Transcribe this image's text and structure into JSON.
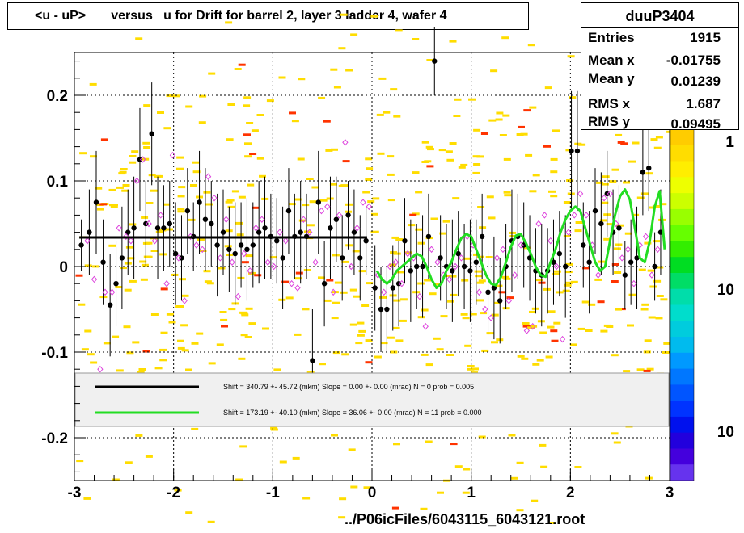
{
  "title": "<u - uP>       versus   u for Drift for barrel 2, layer 3 ladder 4, wafer 4",
  "stats": {
    "name": "duuP3404",
    "rows": [
      {
        "label": "Entries",
        "value": "1915"
      },
      {
        "label": "Mean x",
        "value": "-0.01755"
      },
      {
        "label": "Mean y",
        "value": "0.01239"
      },
      {
        "label": "RMS x",
        "value": "1.687"
      },
      {
        "label": "RMS y",
        "value": "0.09495"
      }
    ]
  },
  "palette_labels": [
    "1",
    "10",
    "10"
  ],
  "footer": "../P06icFiles/6043115_6043121.root",
  "legend": [
    {
      "color": "#000000",
      "text": "Shift =   340.79 +- 45.72 (mkm) Slope =     0.00 +- 0.00 (mrad)  N = 0 prob = 0.005"
    },
    {
      "color": "#22dd22",
      "text": "Shift =   173.19 +- 40.10 (mkm) Slope =    36.06 +- 0.00 (mrad)  N = 11 prob = 0.000"
    }
  ],
  "chart_data": {
    "type": "scatter",
    "title": "<u - uP>       versus   u for Drift for barrel 2, layer 3 ladder 4, wafer 4",
    "xlabel": "",
    "ylabel": "",
    "xlim": [
      -3,
      3
    ],
    "ylim": [
      -0.25,
      0.25
    ],
    "x_ticks": [
      -3,
      -2,
      -1,
      0,
      1,
      2,
      3
    ],
    "x_tick_labels": [
      "-3",
      "-2",
      "-1",
      "0",
      "1",
      "2",
      "3"
    ],
    "y_ticks": [
      -0.2,
      -0.1,
      0,
      0.1,
      0.2
    ],
    "y_tick_labels": [
      "-0.2",
      "-0.1",
      "0",
      "0.1",
      "0.2"
    ],
    "grid": true,
    "series": [
      {
        "marker": "filled-circle",
        "color": "#000000",
        "x": [
          -2.93,
          -2.85,
          -2.78,
          -2.71,
          -2.64,
          -2.58,
          -2.52,
          -2.46,
          -2.4,
          -2.34,
          -2.28,
          -2.22,
          -2.16,
          -2.1,
          -2.04,
          -1.98,
          -1.92,
          -1.86,
          -1.8,
          -1.74,
          -1.68,
          -1.62,
          -1.56,
          -1.5,
          -1.44,
          -1.38,
          -1.32,
          -1.26,
          -1.2,
          -1.14,
          -1.08,
          -1.02,
          -0.96,
          -0.9,
          -0.84,
          -0.78,
          -0.72,
          -0.66,
          -0.6,
          -0.54,
          -0.48,
          -0.42,
          -0.36,
          -0.3,
          -0.24,
          -0.18,
          -0.12,
          -0.06,
          0.03,
          0.09,
          0.15,
          0.21,
          0.27,
          0.33,
          0.39,
          0.45,
          0.51,
          0.57,
          0.63,
          0.69,
          0.75,
          0.81,
          0.87,
          0.93,
          0.99,
          1.05,
          1.11,
          1.17,
          1.23,
          1.29,
          1.35,
          1.41,
          1.47,
          1.53,
          1.59,
          1.65,
          1.71,
          1.77,
          1.83,
          1.89,
          1.95,
          2.01,
          2.07,
          2.13,
          2.19,
          2.25,
          2.31,
          2.37,
          2.43,
          2.49,
          2.55,
          2.61,
          2.67,
          2.73,
          2.79,
          2.85,
          2.91
        ],
        "y": [
          0.025,
          0.04,
          0.075,
          0.005,
          -0.045,
          -0.02,
          0.01,
          0.04,
          0.045,
          0.125,
          0.05,
          0.155,
          0.045,
          0.045,
          0.05,
          0.015,
          0.01,
          0.065,
          0.035,
          0.075,
          0.055,
          0.05,
          0.025,
          0.04,
          0.02,
          0.015,
          0.025,
          0.02,
          0.025,
          0.04,
          0.045,
          0.035,
          0.03,
          0.01,
          0.065,
          0.035,
          0.04,
          0.035,
          -0.11,
          0.075,
          -0.02,
          0.045,
          0.055,
          0.01,
          0.06,
          0.04,
          0.01,
          0.03,
          -0.025,
          -0.05,
          -0.05,
          -0.025,
          -0.02,
          0.03,
          -0.005,
          0.0,
          0.0,
          0.035,
          0.24,
          0.01,
          0.0,
          -0.005,
          0.015,
          0.0,
          -0.005,
          0.005,
          0.035,
          -0.03,
          -0.025,
          -0.04,
          0.0,
          0.03,
          0.035,
          0.025,
          0.01,
          -0.005,
          -0.01,
          -0.005,
          0.005,
          0.015,
          0.0,
          0.135,
          0.135,
          0.025,
          0.005,
          0.065,
          0.05,
          0.085,
          0.04,
          0.045,
          -0.01,
          0.005,
          0.01,
          0.11,
          0.115,
          0.0,
          0.04
        ],
        "err": [
          0.03,
          0.05,
          0.06,
          0.05,
          0.06,
          0.05,
          0.06,
          0.05,
          0.06,
          0.06,
          0.05,
          0.06,
          0.06,
          0.05,
          0.05,
          0.06,
          0.05,
          0.05,
          0.04,
          0.06,
          0.06,
          0.05,
          0.06,
          0.05,
          0.05,
          0.06,
          0.05,
          0.06,
          0.05,
          0.06,
          0.06,
          0.05,
          0.05,
          0.06,
          0.05,
          0.05,
          0.06,
          0.05,
          0.06,
          0.06,
          0.05,
          0.06,
          0.05,
          0.05,
          0.04,
          0.05,
          0.05,
          0.04,
          0.05,
          0.05,
          0.05,
          0.05,
          0.05,
          0.05,
          0.06,
          0.05,
          0.06,
          0.05,
          0.04,
          0.05,
          0.05,
          0.06,
          0.05,
          0.05,
          0.06,
          0.05,
          0.05,
          0.05,
          0.06,
          0.05,
          0.05,
          0.06,
          0.05,
          0.05,
          0.05,
          0.05,
          0.06,
          0.05,
          0.05,
          0.05,
          0.06,
          0.07,
          0.07,
          0.05,
          0.06,
          0.05,
          0.06,
          0.05,
          0.05,
          0.05,
          0.04,
          0.05,
          0.06,
          0.05,
          0.05,
          0.04,
          0.05
        ]
      },
      {
        "marker": "open-diamond",
        "color": "#dd44dd",
        "x": [
          -2.87,
          -2.8,
          -2.74,
          -2.69,
          -2.62,
          -2.55,
          -2.48,
          -2.43,
          -2.37,
          -2.31,
          -2.25,
          -2.19,
          -2.13,
          -2.07,
          -2.01,
          -1.95,
          -1.89,
          -1.83,
          -1.77,
          -1.71,
          -1.65,
          -1.59,
          -1.53,
          -1.47,
          -1.41,
          -1.35,
          -1.29,
          -1.23,
          -1.17,
          -1.11,
          -1.05,
          -0.99,
          -0.93,
          -0.87,
          -0.81,
          -0.75,
          -0.69,
          -0.63,
          -0.57,
          -0.51,
          -0.45,
          -0.39,
          -0.33,
          -0.27,
          -0.21,
          -0.15,
          -0.09,
          -0.03,
          0.06,
          0.12,
          0.18,
          0.24,
          0.3,
          0.36,
          0.42,
          0.48,
          0.54,
          0.6,
          0.66,
          0.72,
          0.78,
          0.84,
          0.9,
          0.96,
          1.02,
          1.08,
          1.14,
          1.2,
          1.26,
          1.32,
          1.38,
          1.44,
          1.5,
          1.56,
          1.62,
          1.68,
          1.74,
          1.8,
          1.86,
          1.92,
          1.98,
          2.04,
          2.1,
          2.16,
          2.22,
          2.28,
          2.34,
          2.4,
          2.46,
          2.52,
          2.58,
          2.64,
          2.7,
          2.76,
          2.82,
          2.88
        ],
        "y": [
          0.03,
          -0.015,
          -0.12,
          -0.03,
          -0.03,
          0.045,
          0.035,
          0.03,
          0.1,
          0.125,
          0.05,
          0.03,
          0.06,
          -0.02,
          0.13,
          0.01,
          -0.04,
          0.035,
          0.025,
          0.02,
          0.105,
          0.08,
          0.01,
          0.055,
          0.005,
          -0.035,
          0.015,
          -0.005,
          0.045,
          0.055,
          0.005,
          0.0,
          0.04,
          0.03,
          -0.02,
          -0.025,
          0.055,
          0.04,
          0.005,
          0.065,
          0.07,
          -0.03,
          0.06,
          0.145,
          0.0,
          0.045,
          0.075,
          0.07,
          -0.01,
          -0.03,
          0.0,
          0.005,
          -0.02,
          0.015,
          0.01,
          -0.035,
          -0.07,
          0.02,
          0.005,
          -0.01,
          -0.015,
          0.0,
          0.01,
          0.035,
          0.025,
          -0.03,
          -0.05,
          -0.06,
          0.01,
          0.02,
          -0.04,
          -0.01,
          0.025,
          -0.075,
          -0.07,
          0.05,
          0.06,
          0.03,
          0.0,
          -0.085,
          0.04,
          0.06,
          0.085,
          0.06,
          0.025,
          -0.01,
          0.08,
          0.085,
          0.05,
          0.01,
          0.02,
          -0.02,
          0.025,
          0.035,
          -0.01,
          0.02
        ]
      },
      {
        "name": "fit black",
        "line": "step",
        "color": "#000000",
        "x": [
          -2.95,
          -0.05
        ],
        "y": [
          0.034,
          0.034
        ]
      },
      {
        "name": "fit green",
        "line": "curve",
        "color": "#22dd22",
        "x": [
          0.05,
          0.1,
          0.15,
          0.2,
          0.25,
          0.3,
          0.35,
          0.4,
          0.45,
          0.5,
          0.55,
          0.6,
          0.65,
          0.7,
          0.75,
          0.8,
          0.85,
          0.9,
          0.95,
          1.0,
          1.05,
          1.1,
          1.15,
          1.2,
          1.25,
          1.3,
          1.35,
          1.4,
          1.45,
          1.5,
          1.55,
          1.6,
          1.65,
          1.7,
          1.75,
          1.8,
          1.85,
          1.9,
          1.95,
          2.0,
          2.05,
          2.1,
          2.15,
          2.2,
          2.25,
          2.3,
          2.35,
          2.4,
          2.45,
          2.5,
          2.55,
          2.6,
          2.65,
          2.7,
          2.75,
          2.8,
          2.85,
          2.9,
          2.95
        ],
        "y": [
          -0.005,
          -0.015,
          -0.02,
          -0.015,
          -0.005,
          0.0,
          0.005,
          0.01,
          0.015,
          0.012,
          0.0,
          -0.015,
          -0.025,
          -0.02,
          -0.005,
          0.005,
          0.02,
          0.033,
          0.038,
          0.035,
          0.02,
          0.005,
          -0.01,
          -0.02,
          -0.022,
          -0.012,
          0.005,
          0.023,
          0.036,
          0.038,
          0.028,
          0.015,
          0.0,
          -0.01,
          -0.012,
          0.005,
          0.02,
          0.04,
          0.055,
          0.065,
          0.07,
          0.065,
          0.045,
          0.025,
          0.005,
          -0.005,
          0.0,
          0.03,
          0.06,
          0.082,
          0.09,
          0.078,
          0.045,
          0.01,
          0.005,
          0.03,
          0.07,
          0.088,
          0.02
        ]
      }
    ]
  }
}
